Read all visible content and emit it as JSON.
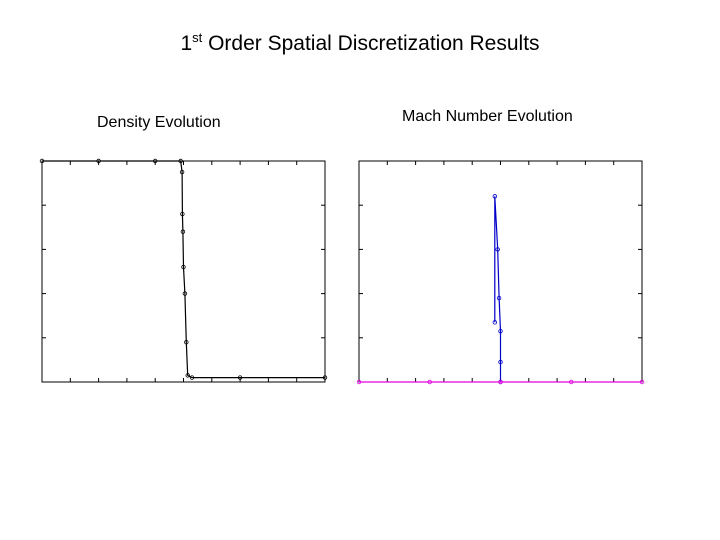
{
  "slide": {
    "title_pre": "1",
    "title_sup": "st",
    "title_post": " Order Spatial Discretization Results"
  },
  "chart_data": [
    {
      "type": "line",
      "title": "Density Evolution",
      "xlabel": "",
      "ylabel": "",
      "xlim": [
        0,
        1
      ],
      "ylim": [
        0,
        1
      ],
      "grid": false,
      "series": [
        {
          "color": "#000000",
          "values": [
            [
              0.0,
              1.0
            ],
            [
              0.2,
              1.0
            ],
            [
              0.4,
              1.0
            ],
            [
              0.49,
              1.0
            ],
            [
              0.495,
              0.95
            ],
            [
              0.496,
              0.76
            ],
            [
              0.498,
              0.68
            ],
            [
              0.5,
              0.52
            ],
            [
              0.505,
              0.4
            ],
            [
              0.51,
              0.18
            ],
            [
              0.515,
              0.03
            ],
            [
              0.53,
              0.02
            ],
            [
              0.7,
              0.02
            ],
            [
              1.0,
              0.02
            ]
          ]
        }
      ]
    },
    {
      "type": "line",
      "title": "Mach Number Evolution",
      "xlabel": "",
      "ylabel": "",
      "xlim": [
        0,
        1
      ],
      "ylim": [
        0,
        1
      ],
      "grid": false,
      "series": [
        {
          "color": "#0000c8",
          "values": [
            [
              0.48,
              0.27
            ],
            [
              0.48,
              0.84
            ],
            [
              0.49,
              0.6
            ],
            [
              0.495,
              0.38
            ],
            [
              0.5,
              0.23
            ],
            [
              0.5,
              0.09
            ],
            [
              0.5,
              0.0
            ]
          ]
        },
        {
          "color": "#e000e0",
          "values": [
            [
              0.0,
              0.0
            ],
            [
              0.25,
              0.0
            ],
            [
              0.5,
              0.0
            ],
            [
              0.75,
              0.0
            ],
            [
              1.0,
              0.0
            ]
          ]
        }
      ]
    }
  ]
}
